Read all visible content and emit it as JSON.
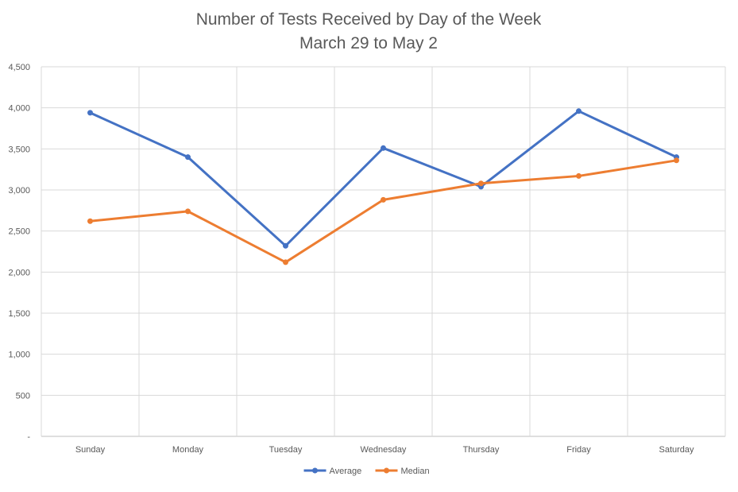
{
  "chart_data": {
    "type": "line",
    "title": "Number of Tests Received by Day of the Week",
    "subtitle": "March 29 to May 2",
    "xlabel": "",
    "ylabel": "",
    "categories": [
      "Sunday",
      "Monday",
      "Tuesday",
      "Wednesday",
      "Thursday",
      "Friday",
      "Saturday"
    ],
    "y_ticks": [
      "-",
      "500",
      "1,000",
      "1,500",
      "2,000",
      "2,500",
      "3,000",
      "3,500",
      "4,000",
      "4,500"
    ],
    "ylim": [
      0,
      4500
    ],
    "grid": true,
    "legend_position": "bottom",
    "series": [
      {
        "name": "Average",
        "color": "#4472C4",
        "values": [
          3940,
          3400,
          2320,
          3510,
          3040,
          3960,
          3400
        ]
      },
      {
        "name": "Median",
        "color": "#ED7D31",
        "values": [
          2620,
          2740,
          2120,
          2880,
          3080,
          3170,
          3360
        ]
      }
    ]
  }
}
